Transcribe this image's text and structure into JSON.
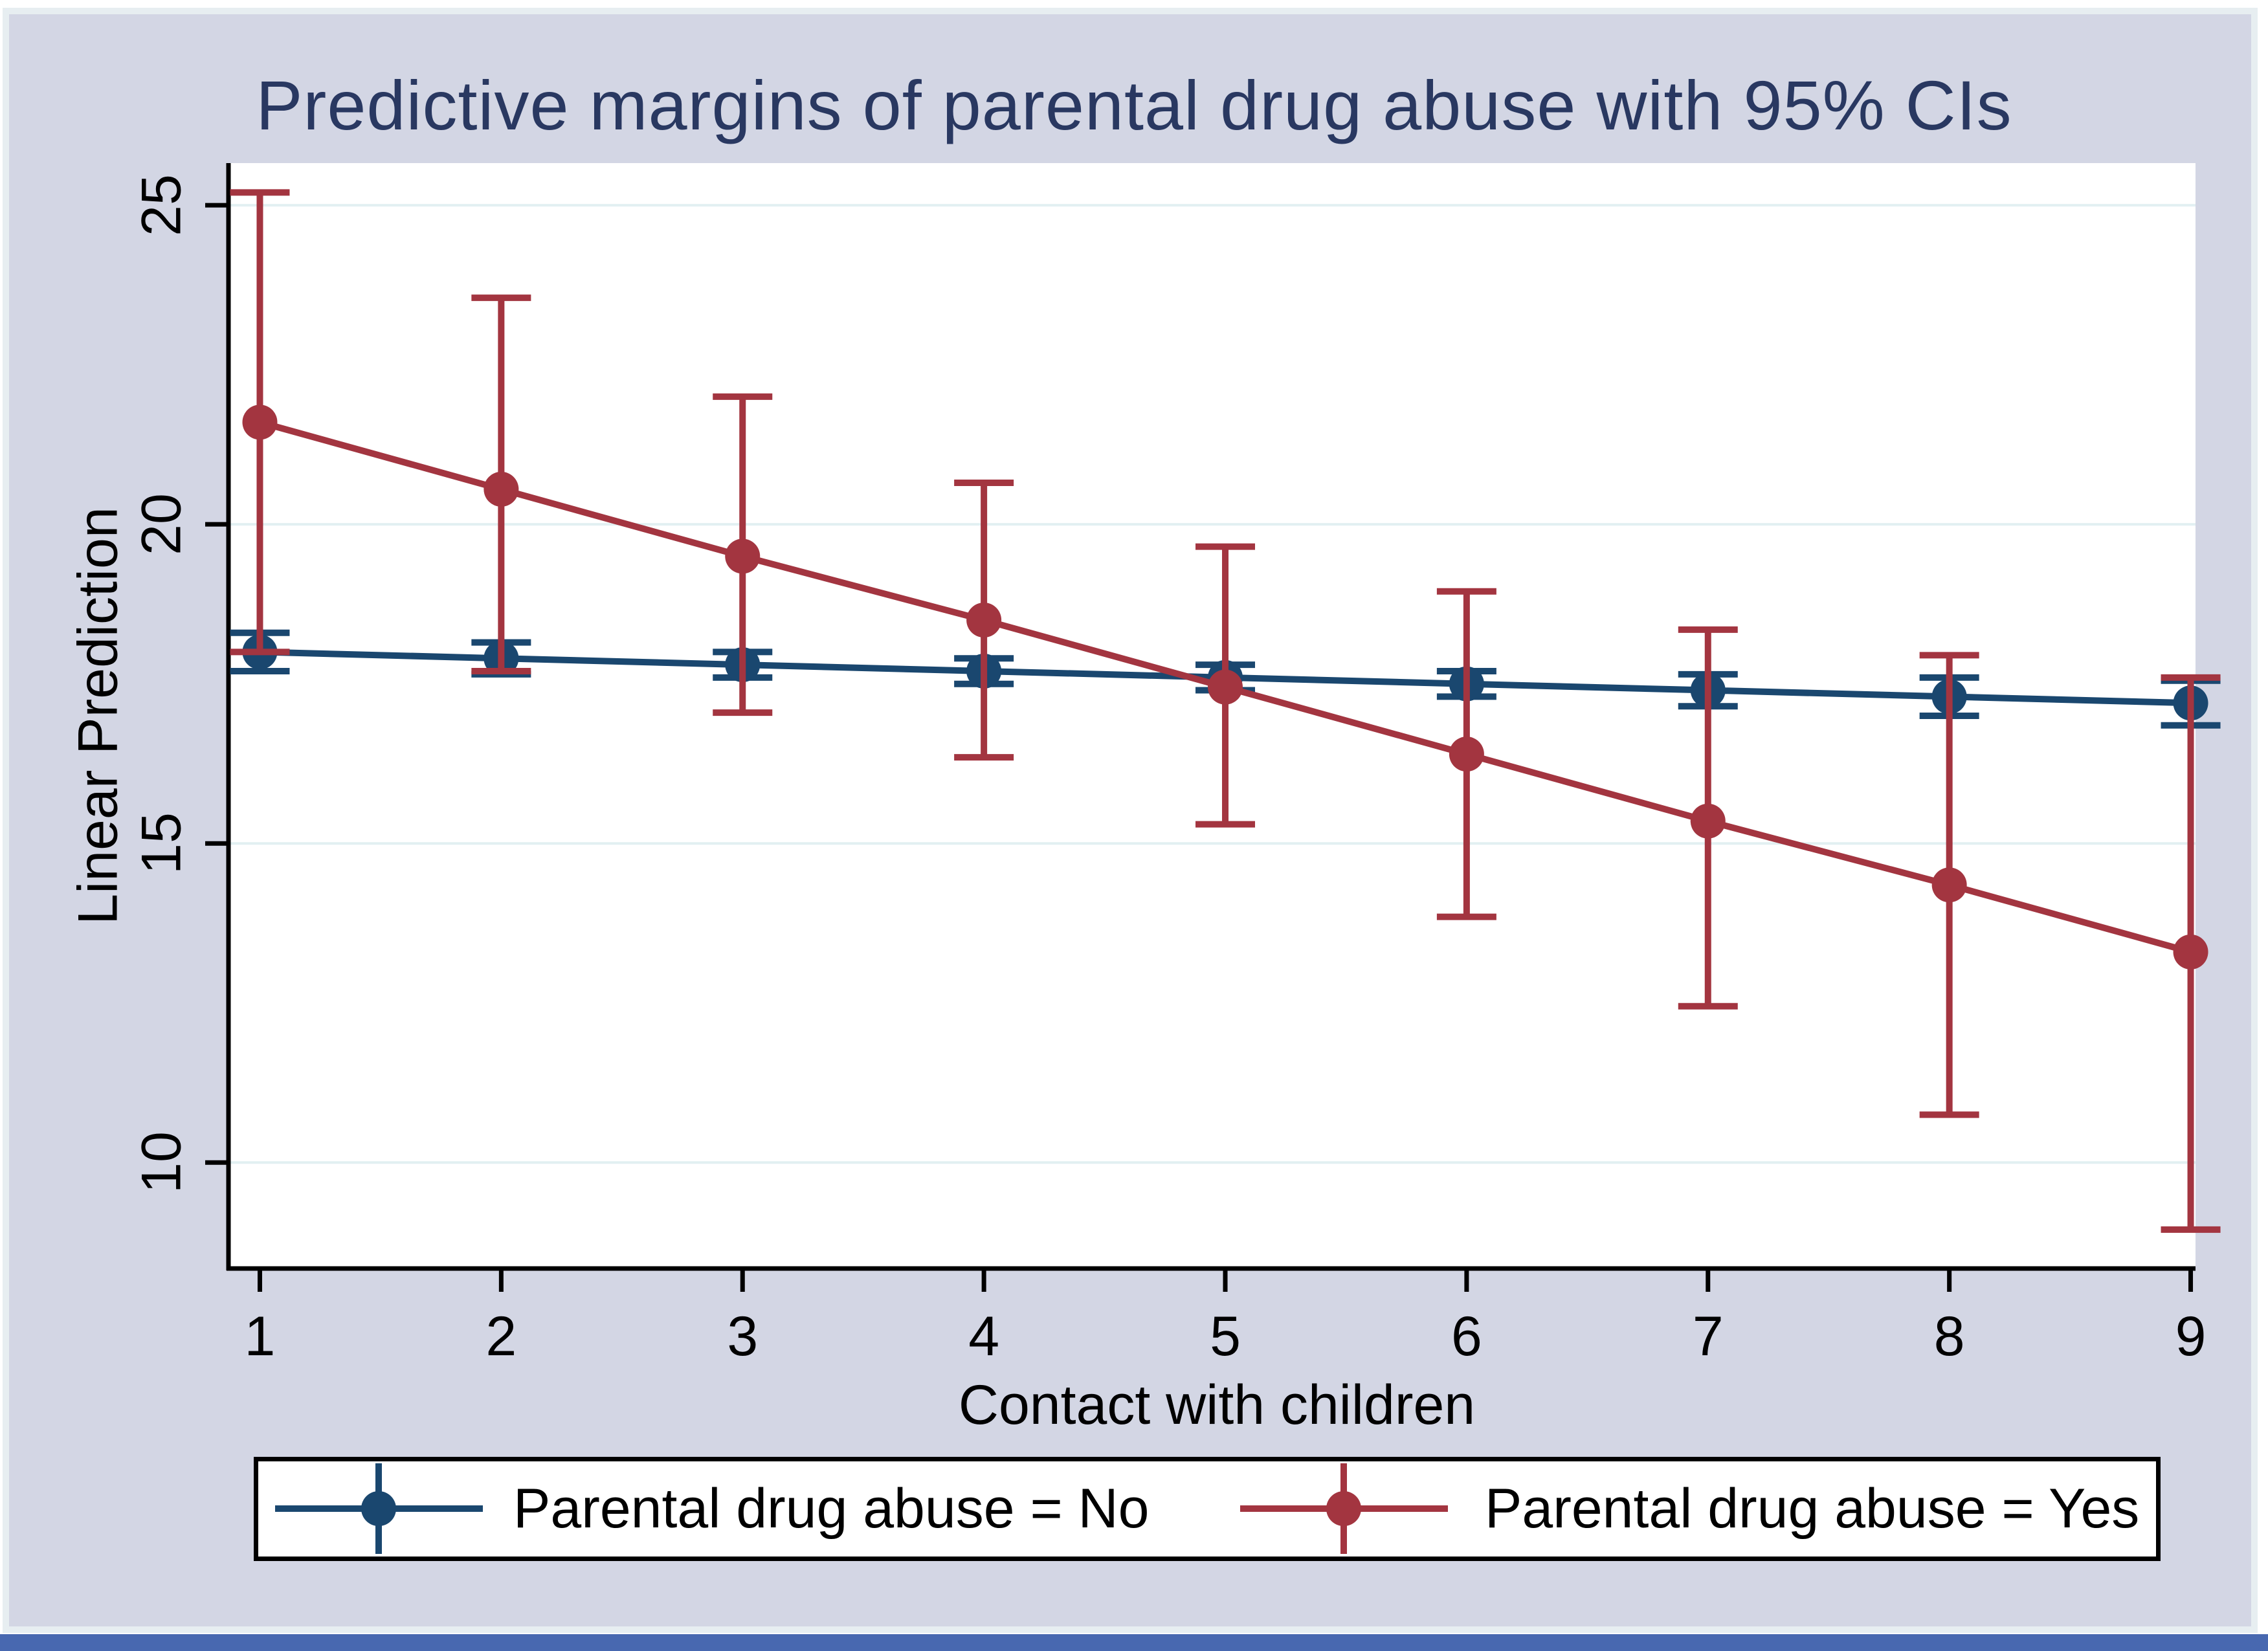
{
  "colors": {
    "figure_background": "#d3d6e4",
    "figure_frame": "#e7eef1",
    "plot_background": "#ffffff",
    "gridline": "#e2f0f2",
    "axis": "#000000",
    "title_text": "#293861",
    "series_no": "#1a476f",
    "series_yes": "#a33540",
    "legend_border": "#000000",
    "bottom_bar": "#4868b0"
  },
  "chart_data": {
    "type": "line",
    "title": "Predictive margins of parental drug abuse with 95% CIs",
    "xlabel": "Contact with children",
    "ylabel": "Linear Prediction",
    "x": [
      1,
      2,
      3,
      4,
      5,
      6,
      7,
      8,
      9
    ],
    "xticks": [
      1,
      2,
      3,
      4,
      5,
      6,
      7,
      8,
      9
    ],
    "yticks": [
      10,
      15,
      20,
      25
    ],
    "xlim": [
      0.87,
      9.02
    ],
    "ylim": [
      8.34,
      25.66
    ],
    "grid": "horizontal",
    "legend_position": "bottom",
    "error_bars": "95% confidence intervals with caps",
    "series": [
      {
        "name": "Parental drug abuse = No",
        "color": "#1a476f",
        "values": [
          18.0,
          17.9,
          17.8,
          17.7,
          17.6,
          17.5,
          17.4,
          17.3,
          17.2
        ],
        "ci_low": [
          17.7,
          17.65,
          17.6,
          17.5,
          17.4,
          17.3,
          17.15,
          17.0,
          16.85
        ],
        "ci_high": [
          18.3,
          18.15,
          18.0,
          17.9,
          17.8,
          17.7,
          17.65,
          17.6,
          17.55
        ]
      },
      {
        "name": "Parental drug abuse = Yes",
        "color": "#a33540",
        "values": [
          21.6,
          20.55,
          19.5,
          18.5,
          17.45,
          16.4,
          15.35,
          14.35,
          13.3
        ],
        "ci_low": [
          18.0,
          17.7,
          17.05,
          16.35,
          15.3,
          13.85,
          12.45,
          10.75,
          8.95
        ],
        "ci_high": [
          25.2,
          23.55,
          22.0,
          20.65,
          19.65,
          18.95,
          18.35,
          17.95,
          17.6
        ]
      }
    ]
  }
}
